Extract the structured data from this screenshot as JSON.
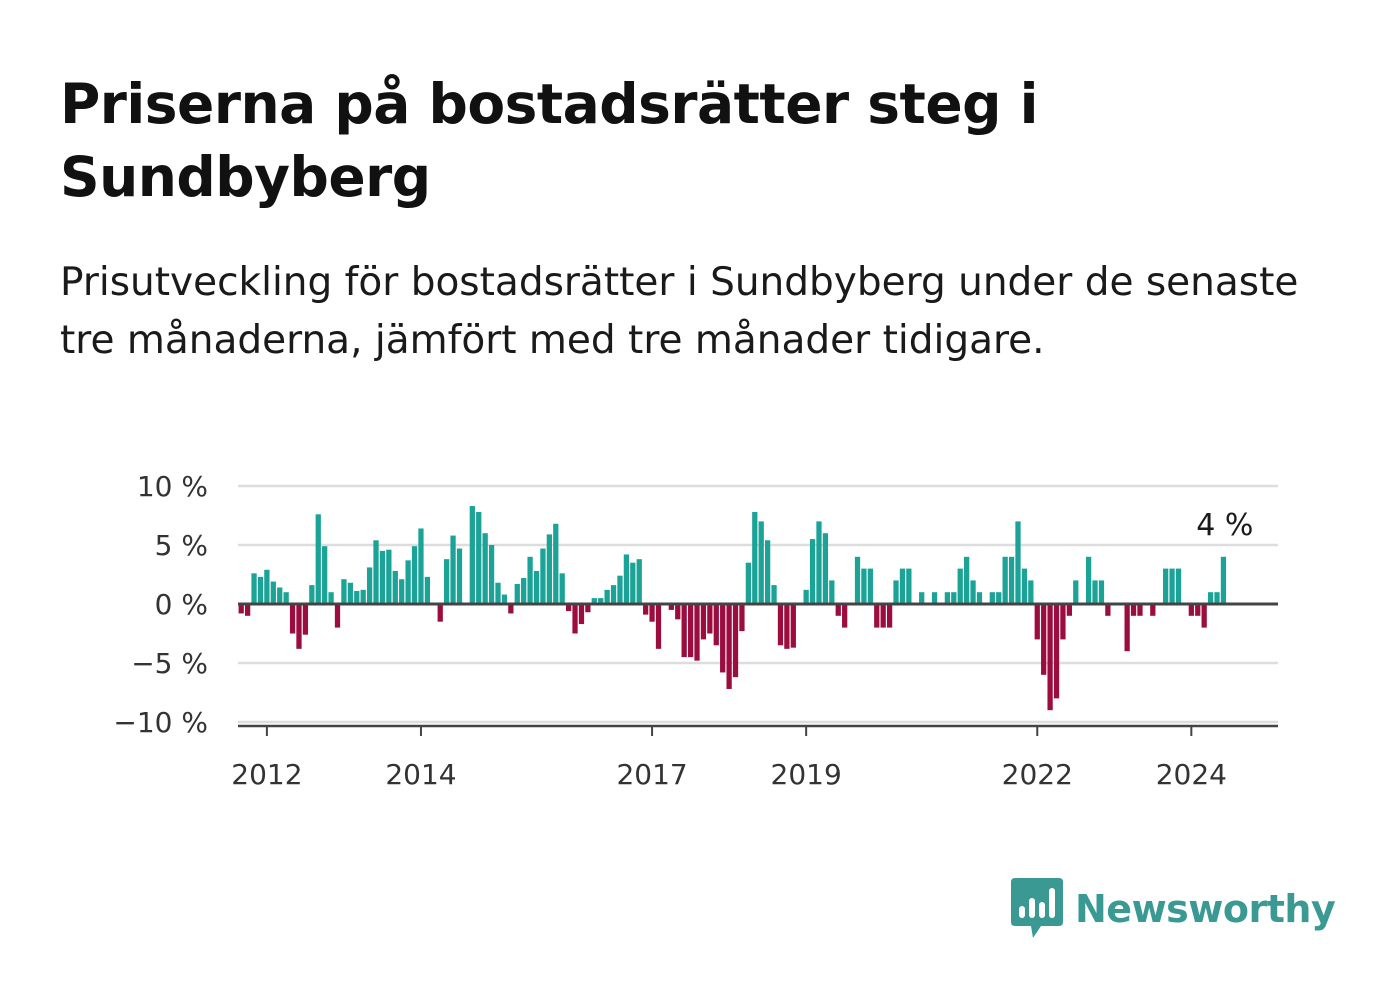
{
  "header": {
    "title": "Priserna på bostadsrätter steg i Sundbyberg",
    "subtitle": "Prisutveckling för bostadsrätter i Sundbyberg under de senaste tre månaderna, jämfört med tre månader tidigare."
  },
  "brand": {
    "name": "Newsworthy",
    "icon": "newsworthy-logo-icon",
    "color": "#3a9a93"
  },
  "colors": {
    "positive": "#1aa396",
    "negative": "#9b0d3e",
    "grid": "#dddddd",
    "zero_line": "#444444"
  },
  "chart_data": {
    "type": "bar",
    "x_start": "2011-09",
    "x_end": "2025-02",
    "ylim": [
      -10,
      10
    ],
    "y_ticks": [
      10,
      5,
      0,
      -5,
      -10
    ],
    "y_tick_labels": [
      "10 %",
      "5 %",
      "0 %",
      "−5 %",
      "−10 %"
    ],
    "x_ticks": [
      "2012",
      "2014",
      "2017",
      "2019",
      "2022",
      "2024"
    ],
    "grid": true,
    "end_label": "4 %",
    "values": [
      -0.8,
      -1.0,
      2.6,
      2.3,
      2.9,
      1.9,
      1.4,
      1.0,
      -2.5,
      -3.8,
      -2.6,
      1.6,
      7.6,
      4.9,
      1.0,
      -2.0,
      2.1,
      1.8,
      1.1,
      1.2,
      3.1,
      5.4,
      4.5,
      4.6,
      2.8,
      2.1,
      3.7,
      4.9,
      6.4,
      2.3,
      0.0,
      -1.5,
      3.8,
      5.8,
      4.7,
      0.0,
      8.3,
      7.8,
      6.0,
      5.0,
      1.8,
      0.8,
      -0.8,
      1.7,
      2.2,
      4.0,
      2.8,
      4.7,
      5.9,
      6.8,
      2.6,
      -0.6,
      -2.5,
      -1.7,
      -0.7,
      0.5,
      0.5,
      1.2,
      1.6,
      2.4,
      4.2,
      3.5,
      3.8,
      -0.9,
      -1.5,
      -3.8,
      0.0,
      -0.5,
      -1.3,
      -4.5,
      -4.5,
      -4.8,
      -3.0,
      -2.5,
      -3.5,
      -5.8,
      -7.2,
      -6.2,
      -2.3,
      3.5,
      7.8,
      7.0,
      5.4,
      1.6,
      -3.5,
      -3.8,
      -3.7,
      0.0,
      1.2,
      5.5,
      7.0,
      6.0,
      2.0,
      -1.0,
      -2.0,
      0.0,
      4.0,
      3.0,
      3.0,
      -2.0,
      -2.0,
      -2.0,
      2.0,
      3.0,
      3.0,
      0.0,
      1.0,
      0.0,
      1.0,
      0.0,
      1.0,
      1.0,
      3.0,
      4.0,
      2.0,
      1.0,
      0.0,
      1.0,
      1.0,
      4.0,
      4.0,
      7.0,
      3.0,
      2.0,
      -3.0,
      -6.0,
      -9.0,
      -8.0,
      -3.0,
      -1.0,
      2.0,
      0.0,
      4.0,
      2.0,
      2.0,
      -1.0,
      0.0,
      0.0,
      -4.0,
      -1.0,
      -1.0,
      0.0,
      -1.0,
      0.0,
      3.0,
      3.0,
      3.0,
      0.0,
      -1.0,
      -1.0,
      -2.0,
      1.0,
      1.0,
      4.0
    ]
  }
}
